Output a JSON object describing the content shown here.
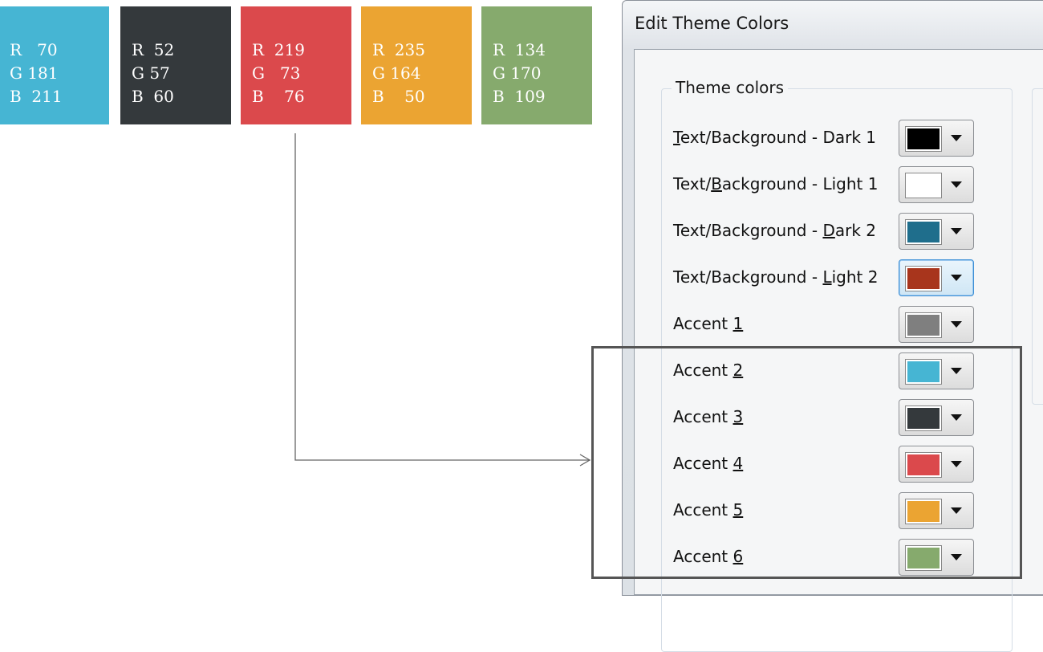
{
  "swatches": [
    {
      "r": "R   70",
      "g": "G 181",
      "b": "B  211",
      "color": "#46b5d3"
    },
    {
      "r": "R  52",
      "g": "G 57",
      "b": "B  60",
      "color": "#34393c"
    },
    {
      "r": "R  219",
      "g": "G   73",
      "b": "B    76",
      "color": "#db494c"
    },
    {
      "r": "R  235",
      "g": "G 164",
      "b": "B    50",
      "color": "#eba432"
    },
    {
      "r": "R  134",
      "g": "G 170",
      "b": "B  109",
      "color": "#86aa6d"
    }
  ],
  "dialog": {
    "title": "Edit Theme Colors",
    "group_label": "Theme colors",
    "rows": [
      {
        "pre": "",
        "key": "T",
        "post": "ext/Background - Dark 1",
        "color": "#000000"
      },
      {
        "pre": "Text/",
        "key": "B",
        "post": "ackground - Light 1",
        "color": "#ffffff"
      },
      {
        "pre": "Text/Background - ",
        "key": "D",
        "post": "ark 2",
        "color": "#1f6e8c"
      },
      {
        "pre": "Text/Background - ",
        "key": "L",
        "post": "ight 2",
        "color": "#a8351c"
      },
      {
        "pre": "Accent ",
        "key": "1",
        "post": "",
        "color": "#7f7f7f"
      },
      {
        "pre": "Accent ",
        "key": "2",
        "post": "",
        "color": "#46b5d3"
      },
      {
        "pre": "Accent ",
        "key": "3",
        "post": "",
        "color": "#34393c"
      },
      {
        "pre": "Accent ",
        "key": "4",
        "post": "",
        "color": "#db494c"
      },
      {
        "pre": "Accent ",
        "key": "5",
        "post": "",
        "color": "#eba432"
      },
      {
        "pre": "Accent ",
        "key": "6",
        "post": "",
        "color": "#86aa6d"
      }
    ]
  }
}
